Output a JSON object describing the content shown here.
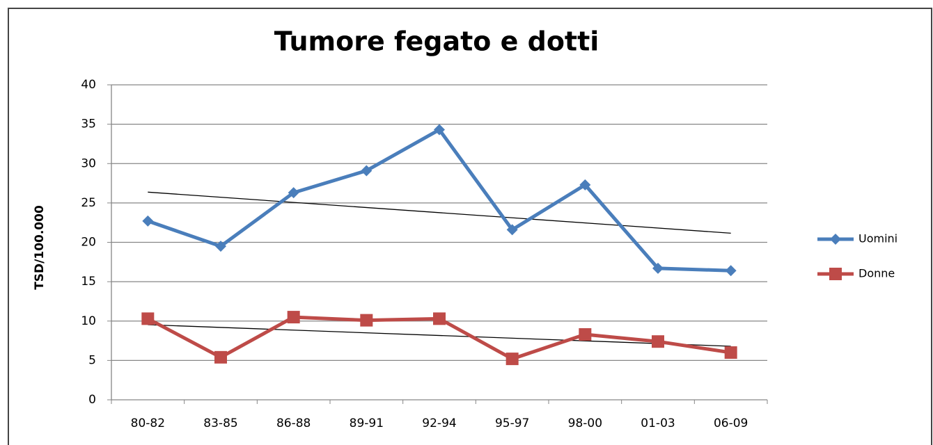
{
  "chart_data": {
    "type": "line",
    "title": "Tumore fegato e dotti",
    "y_label": "TSD/100.000",
    "categories": [
      "80-82",
      "83-85",
      "86-88",
      "89-91",
      "92-94",
      "95-97",
      "98-00",
      "01-03",
      "06-09"
    ],
    "series": [
      {
        "name": "Uomini",
        "color": "#4a7ebb",
        "marker": "diamond",
        "values": [
          22.7,
          19.5,
          26.3,
          29.1,
          34.3,
          21.6,
          27.3,
          16.7,
          16.4
        ]
      },
      {
        "name": "Donne",
        "color": "#be4b48",
        "marker": "square",
        "values": [
          10.3,
          5.4,
          10.5,
          10.1,
          10.3,
          5.2,
          8.3,
          7.4,
          6.0
        ]
      }
    ],
    "ylim": [
      0,
      40
    ],
    "yticks": [
      0,
      5,
      10,
      15,
      20,
      25,
      30,
      35,
      40
    ],
    "grid": true,
    "trendline": true,
    "legend": "right"
  }
}
